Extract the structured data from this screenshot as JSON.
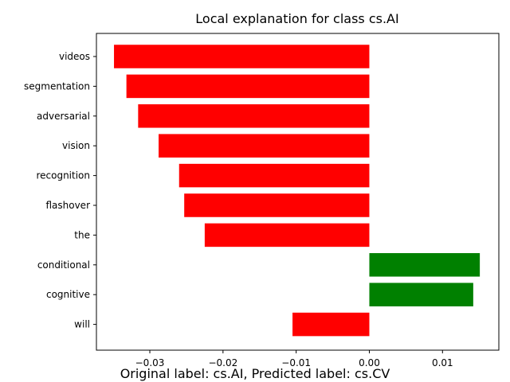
{
  "chart_data": {
    "type": "bar",
    "orientation": "horizontal",
    "title": "Local explanation for class cs.AI",
    "caption": "Original label: cs.AI, Predicted label: cs.CV",
    "xlabel": "",
    "ylabel": "",
    "xlim": [
      -0.0373,
      0.0177
    ],
    "xticks": [
      -0.03,
      -0.02,
      -0.01,
      0.0,
      0.01
    ],
    "xtick_labels": [
      "−0.03",
      "−0.02",
      "−0.01",
      "0.00",
      "0.01"
    ],
    "categories": [
      "videos",
      "segmentation",
      "adversarial",
      "vision",
      "recognition",
      "flashover",
      "the",
      "conditional",
      "cognitive",
      "will"
    ],
    "values": [
      -0.0349,
      -0.0332,
      -0.0316,
      -0.0288,
      -0.026,
      -0.0253,
      -0.0225,
      0.0151,
      0.0142,
      -0.0105
    ],
    "colors": {
      "negative": "#ff0000",
      "positive": "#008000"
    },
    "grid": false,
    "legend": "none"
  }
}
